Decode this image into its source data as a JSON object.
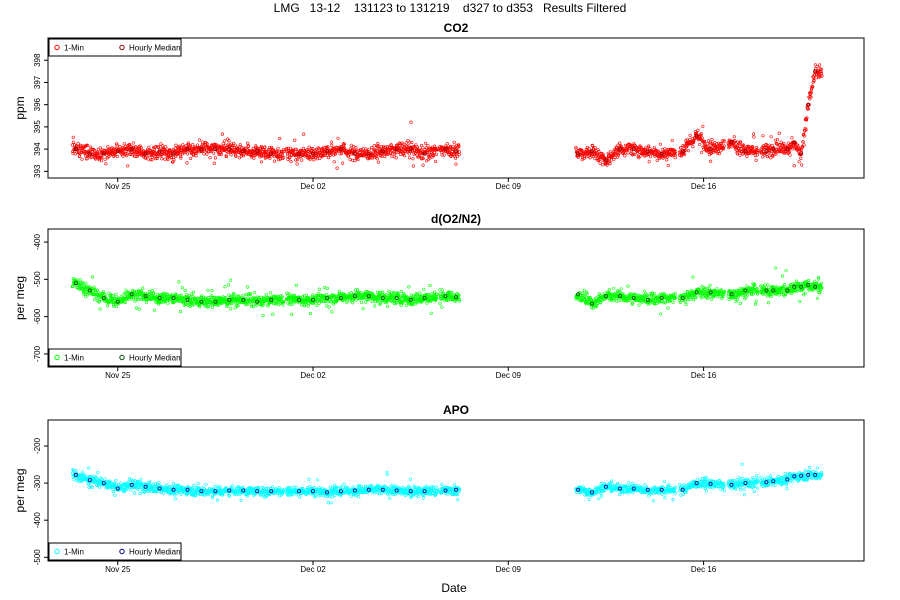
{
  "page": {
    "title": "LMG   13-12    131123 to 131219    d327 to d353   Results Filtered",
    "xlabel": "Date"
  },
  "chart_data": [
    {
      "type": "scatter",
      "title": "CO2",
      "ylabel": "ppm",
      "xlabel": "Date",
      "x_ticks": [
        "Nov 25",
        "Dec 02",
        "Dec 09",
        "Dec 16"
      ],
      "xlim": [
        "2013-11-22T12:00",
        "2013-12-21T18:00"
      ],
      "ylim": [
        392.7,
        399.0
      ],
      "y_ticks": [
        393,
        394,
        395,
        396,
        397,
        398
      ],
      "legend_position": "top-left",
      "grid": false,
      "series": [
        {
          "name": "1-Min",
          "color": "#ff0000",
          "marker": "open-circle",
          "data_gaps": [
            [
              "2013-11-30T23:00",
              "2013-12-01T01:00"
            ],
            [
              "2013-12-06T11:00",
              "2013-12-06T13:00"
            ],
            [
              "2013-12-07T06:00",
              "2013-12-11T10:00"
            ],
            [
              "2013-12-15T00:00",
              "2013-12-15T03:00"
            ],
            [
              "2013-12-16T18:00",
              "2013-12-16T21:00"
            ],
            [
              "2013-12-17T23:00",
              "2013-12-18T01:00"
            ]
          ]
        },
        {
          "name": "Hourly Median",
          "color": "#8b0000",
          "marker": "open-circle",
          "x": [
            "2013-11-23T12:00",
            "2013-11-24T00:00",
            "2013-11-24T12:00",
            "2013-11-25T00:00",
            "2013-11-25T12:00",
            "2013-11-26T00:00",
            "2013-11-26T12:00",
            "2013-11-27T00:00",
            "2013-11-27T12:00",
            "2013-11-28T00:00",
            "2013-11-28T12:00",
            "2013-11-29T00:00",
            "2013-11-29T12:00",
            "2013-11-30T00:00",
            "2013-11-30T12:00",
            "2013-12-01T12:00",
            "2013-12-02T00:00",
            "2013-12-02T12:00",
            "2013-12-03T00:00",
            "2013-12-03T12:00",
            "2013-12-04T00:00",
            "2013-12-04T12:00",
            "2013-12-05T00:00",
            "2013-12-05T12:00",
            "2013-12-06T00:00",
            "2013-12-06T18:00",
            "2013-12-07T03:00",
            "2013-12-11T12:00",
            "2013-12-12T00:00",
            "2013-12-12T12:00",
            "2013-12-13T00:00",
            "2013-12-13T12:00",
            "2013-12-14T00:00",
            "2013-12-14T12:00",
            "2013-12-15T06:00",
            "2013-12-15T18:00",
            "2013-12-16T06:00",
            "2013-12-17T00:00",
            "2013-12-17T12:00",
            "2013-12-18T06:00",
            "2013-12-18T12:00",
            "2013-12-19T00:00",
            "2013-12-19T06:00",
            "2013-12-19T12:00",
            "2013-12-19T18:00",
            "2013-12-20T00:00"
          ],
          "y": [
            394.0,
            393.8,
            393.8,
            393.9,
            394.0,
            393.8,
            393.9,
            393.8,
            394.0,
            394.0,
            394.0,
            394.0,
            393.9,
            393.9,
            393.8,
            393.8,
            393.8,
            393.9,
            394.0,
            393.8,
            393.8,
            393.9,
            394.0,
            394.0,
            393.8,
            394.0,
            393.9,
            393.8,
            393.9,
            393.5,
            394.0,
            394.0,
            393.9,
            393.8,
            393.9,
            394.6,
            394.0,
            394.3,
            393.9,
            393.9,
            394.0,
            394.0,
            394.3,
            393.8,
            396.0,
            397.5
          ]
        }
      ]
    },
    {
      "type": "scatter",
      "title": "d(O2/N2)",
      "ylabel": "per meg",
      "xlabel": "Date",
      "x_ticks": [
        "Nov 25",
        "Dec 02",
        "Dec 09",
        "Dec 16"
      ],
      "xlim": [
        "2013-11-22T12:00",
        "2013-12-21T18:00"
      ],
      "ylim": [
        -735,
        -365
      ],
      "y_ticks": [
        -700,
        -600,
        -500,
        -400
      ],
      "legend_position": "bottom-left",
      "grid": false,
      "series": [
        {
          "name": "1-Min",
          "color": "#00ff00",
          "marker": "open-circle",
          "data_gaps": [
            [
              "2013-11-30T23:00",
              "2013-12-01T01:00"
            ],
            [
              "2013-12-06T11:00",
              "2013-12-06T13:00"
            ],
            [
              "2013-12-07T06:00",
              "2013-12-11T10:00"
            ],
            [
              "2013-12-15T00:00",
              "2013-12-15T03:00"
            ],
            [
              "2013-12-16T18:00",
              "2013-12-16T21:00"
            ],
            [
              "2013-12-17T23:00",
              "2013-12-18T01:00"
            ]
          ]
        },
        {
          "name": "Hourly Median",
          "color": "#004d00",
          "marker": "open-circle",
          "x": [
            "2013-11-23T12:00",
            "2013-11-24T00:00",
            "2013-11-24T12:00",
            "2013-11-25T00:00",
            "2013-11-25T12:00",
            "2013-11-26T00:00",
            "2013-11-26T12:00",
            "2013-11-27T00:00",
            "2013-11-27T12:00",
            "2013-11-28T00:00",
            "2013-11-28T12:00",
            "2013-11-29T00:00",
            "2013-11-29T12:00",
            "2013-11-30T00:00",
            "2013-11-30T12:00",
            "2013-12-01T12:00",
            "2013-12-02T00:00",
            "2013-12-02T12:00",
            "2013-12-03T00:00",
            "2013-12-03T12:00",
            "2013-12-04T00:00",
            "2013-12-04T12:00",
            "2013-12-05T00:00",
            "2013-12-05T12:00",
            "2013-12-06T00:00",
            "2013-12-06T18:00",
            "2013-12-07T03:00",
            "2013-12-11T12:00",
            "2013-12-12T00:00",
            "2013-12-12T12:00",
            "2013-12-13T00:00",
            "2013-12-13T12:00",
            "2013-12-14T00:00",
            "2013-12-14T12:00",
            "2013-12-15T06:00",
            "2013-12-15T18:00",
            "2013-12-16T06:00",
            "2013-12-17T00:00",
            "2013-12-17T12:00",
            "2013-12-18T06:00",
            "2013-12-18T12:00",
            "2013-12-19T00:00",
            "2013-12-19T06:00",
            "2013-12-19T12:00",
            "2013-12-19T18:00",
            "2013-12-20T00:00"
          ],
          "y": [
            -510,
            -530,
            -550,
            -560,
            -540,
            -545,
            -550,
            -550,
            -555,
            -560,
            -560,
            -555,
            -555,
            -560,
            -555,
            -555,
            -555,
            -550,
            -550,
            -545,
            -545,
            -550,
            -550,
            -555,
            -550,
            -545,
            -548,
            -540,
            -565,
            -545,
            -545,
            -550,
            -555,
            -550,
            -550,
            -535,
            -535,
            -540,
            -530,
            -530,
            -530,
            -530,
            -520,
            -520,
            -515,
            -520
          ]
        }
      ]
    },
    {
      "type": "scatter",
      "title": "APO",
      "ylabel": "per meg",
      "xlabel": "Date",
      "x_ticks": [
        "Nov 25",
        "Dec 02",
        "Dec 09",
        "Dec 16"
      ],
      "xlim": [
        "2013-11-22T12:00",
        "2013-12-21T18:00"
      ],
      "ylim": [
        -510,
        -130
      ],
      "y_ticks": [
        -500,
        -400,
        -300,
        -200
      ],
      "legend_position": "bottom-left",
      "grid": false,
      "series": [
        {
          "name": "1-Min",
          "color": "#00ffff",
          "marker": "open-circle",
          "data_gaps": [
            [
              "2013-11-30T23:00",
              "2013-12-01T01:00"
            ],
            [
              "2013-12-06T11:00",
              "2013-12-06T13:00"
            ],
            [
              "2013-12-07T06:00",
              "2013-12-11T10:00"
            ],
            [
              "2013-12-15T00:00",
              "2013-12-15T03:00"
            ],
            [
              "2013-12-16T18:00",
              "2013-12-16T21:00"
            ],
            [
              "2013-12-17T23:00",
              "2013-12-18T01:00"
            ]
          ]
        },
        {
          "name": "Hourly Median",
          "color": "#00008b",
          "marker": "open-circle",
          "x": [
            "2013-11-23T12:00",
            "2013-11-24T00:00",
            "2013-11-24T12:00",
            "2013-11-25T00:00",
            "2013-11-25T12:00",
            "2013-11-26T00:00",
            "2013-11-26T12:00",
            "2013-11-27T00:00",
            "2013-11-27T12:00",
            "2013-11-28T00:00",
            "2013-11-28T12:00",
            "2013-11-29T00:00",
            "2013-11-29T12:00",
            "2013-11-30T00:00",
            "2013-11-30T12:00",
            "2013-12-01T12:00",
            "2013-12-02T00:00",
            "2013-12-02T12:00",
            "2013-12-03T00:00",
            "2013-12-03T12:00",
            "2013-12-04T00:00",
            "2013-12-04T12:00",
            "2013-12-05T00:00",
            "2013-12-05T12:00",
            "2013-12-06T00:00",
            "2013-12-06T18:00",
            "2013-12-07T03:00",
            "2013-12-11T12:00",
            "2013-12-12T00:00",
            "2013-12-12T12:00",
            "2013-12-13T00:00",
            "2013-12-13T12:00",
            "2013-12-14T00:00",
            "2013-12-14T12:00",
            "2013-12-15T06:00",
            "2013-12-15T18:00",
            "2013-12-16T06:00",
            "2013-12-17T00:00",
            "2013-12-17T12:00",
            "2013-12-18T06:00",
            "2013-12-18T12:00",
            "2013-12-19T00:00",
            "2013-12-19T06:00",
            "2013-12-19T12:00",
            "2013-12-19T18:00",
            "2013-12-20T00:00"
          ],
          "y": [
            -278,
            -292,
            -300,
            -315,
            -305,
            -310,
            -315,
            -318,
            -318,
            -322,
            -322,
            -320,
            -320,
            -322,
            -322,
            -322,
            -322,
            -325,
            -322,
            -320,
            -318,
            -318,
            -320,
            -322,
            -322,
            -320,
            -318,
            -318,
            -325,
            -310,
            -315,
            -315,
            -318,
            -318,
            -318,
            -300,
            -302,
            -305,
            -300,
            -298,
            -295,
            -290,
            -282,
            -280,
            -278,
            -278
          ]
        }
      ]
    }
  ]
}
